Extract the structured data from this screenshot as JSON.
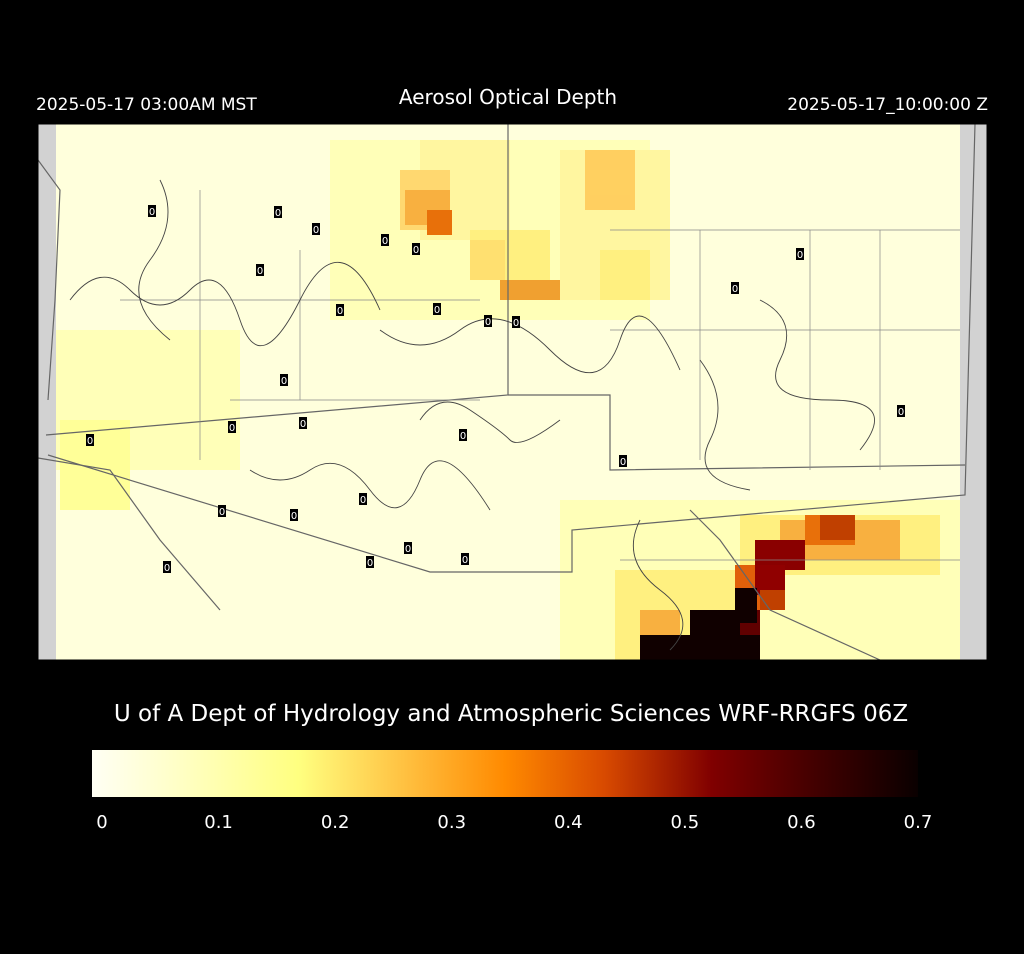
{
  "header": {
    "left": "2025-05-17 03:00AM MST",
    "title": "Aerosol Optical Depth",
    "right": "2025-05-17_10:00:00 Z"
  },
  "stations": [
    "0",
    "0",
    "0",
    "0",
    "0",
    "0",
    "0",
    "0",
    "0",
    "0",
    "0",
    "0",
    "0",
    "0",
    "0",
    "0",
    "0",
    "0",
    "0",
    "0",
    "0",
    "0",
    "0",
    "0",
    "0",
    "0"
  ],
  "credit": "U of A Dept of Hydrology and Atmospheric Sciences WRF-RRGFS 06Z",
  "colorbar": {
    "range": [
      0,
      0.7
    ],
    "ticks": [
      0,
      0.1,
      0.2,
      0.3,
      0.4,
      0.5,
      0.6,
      0.7
    ]
  }
}
